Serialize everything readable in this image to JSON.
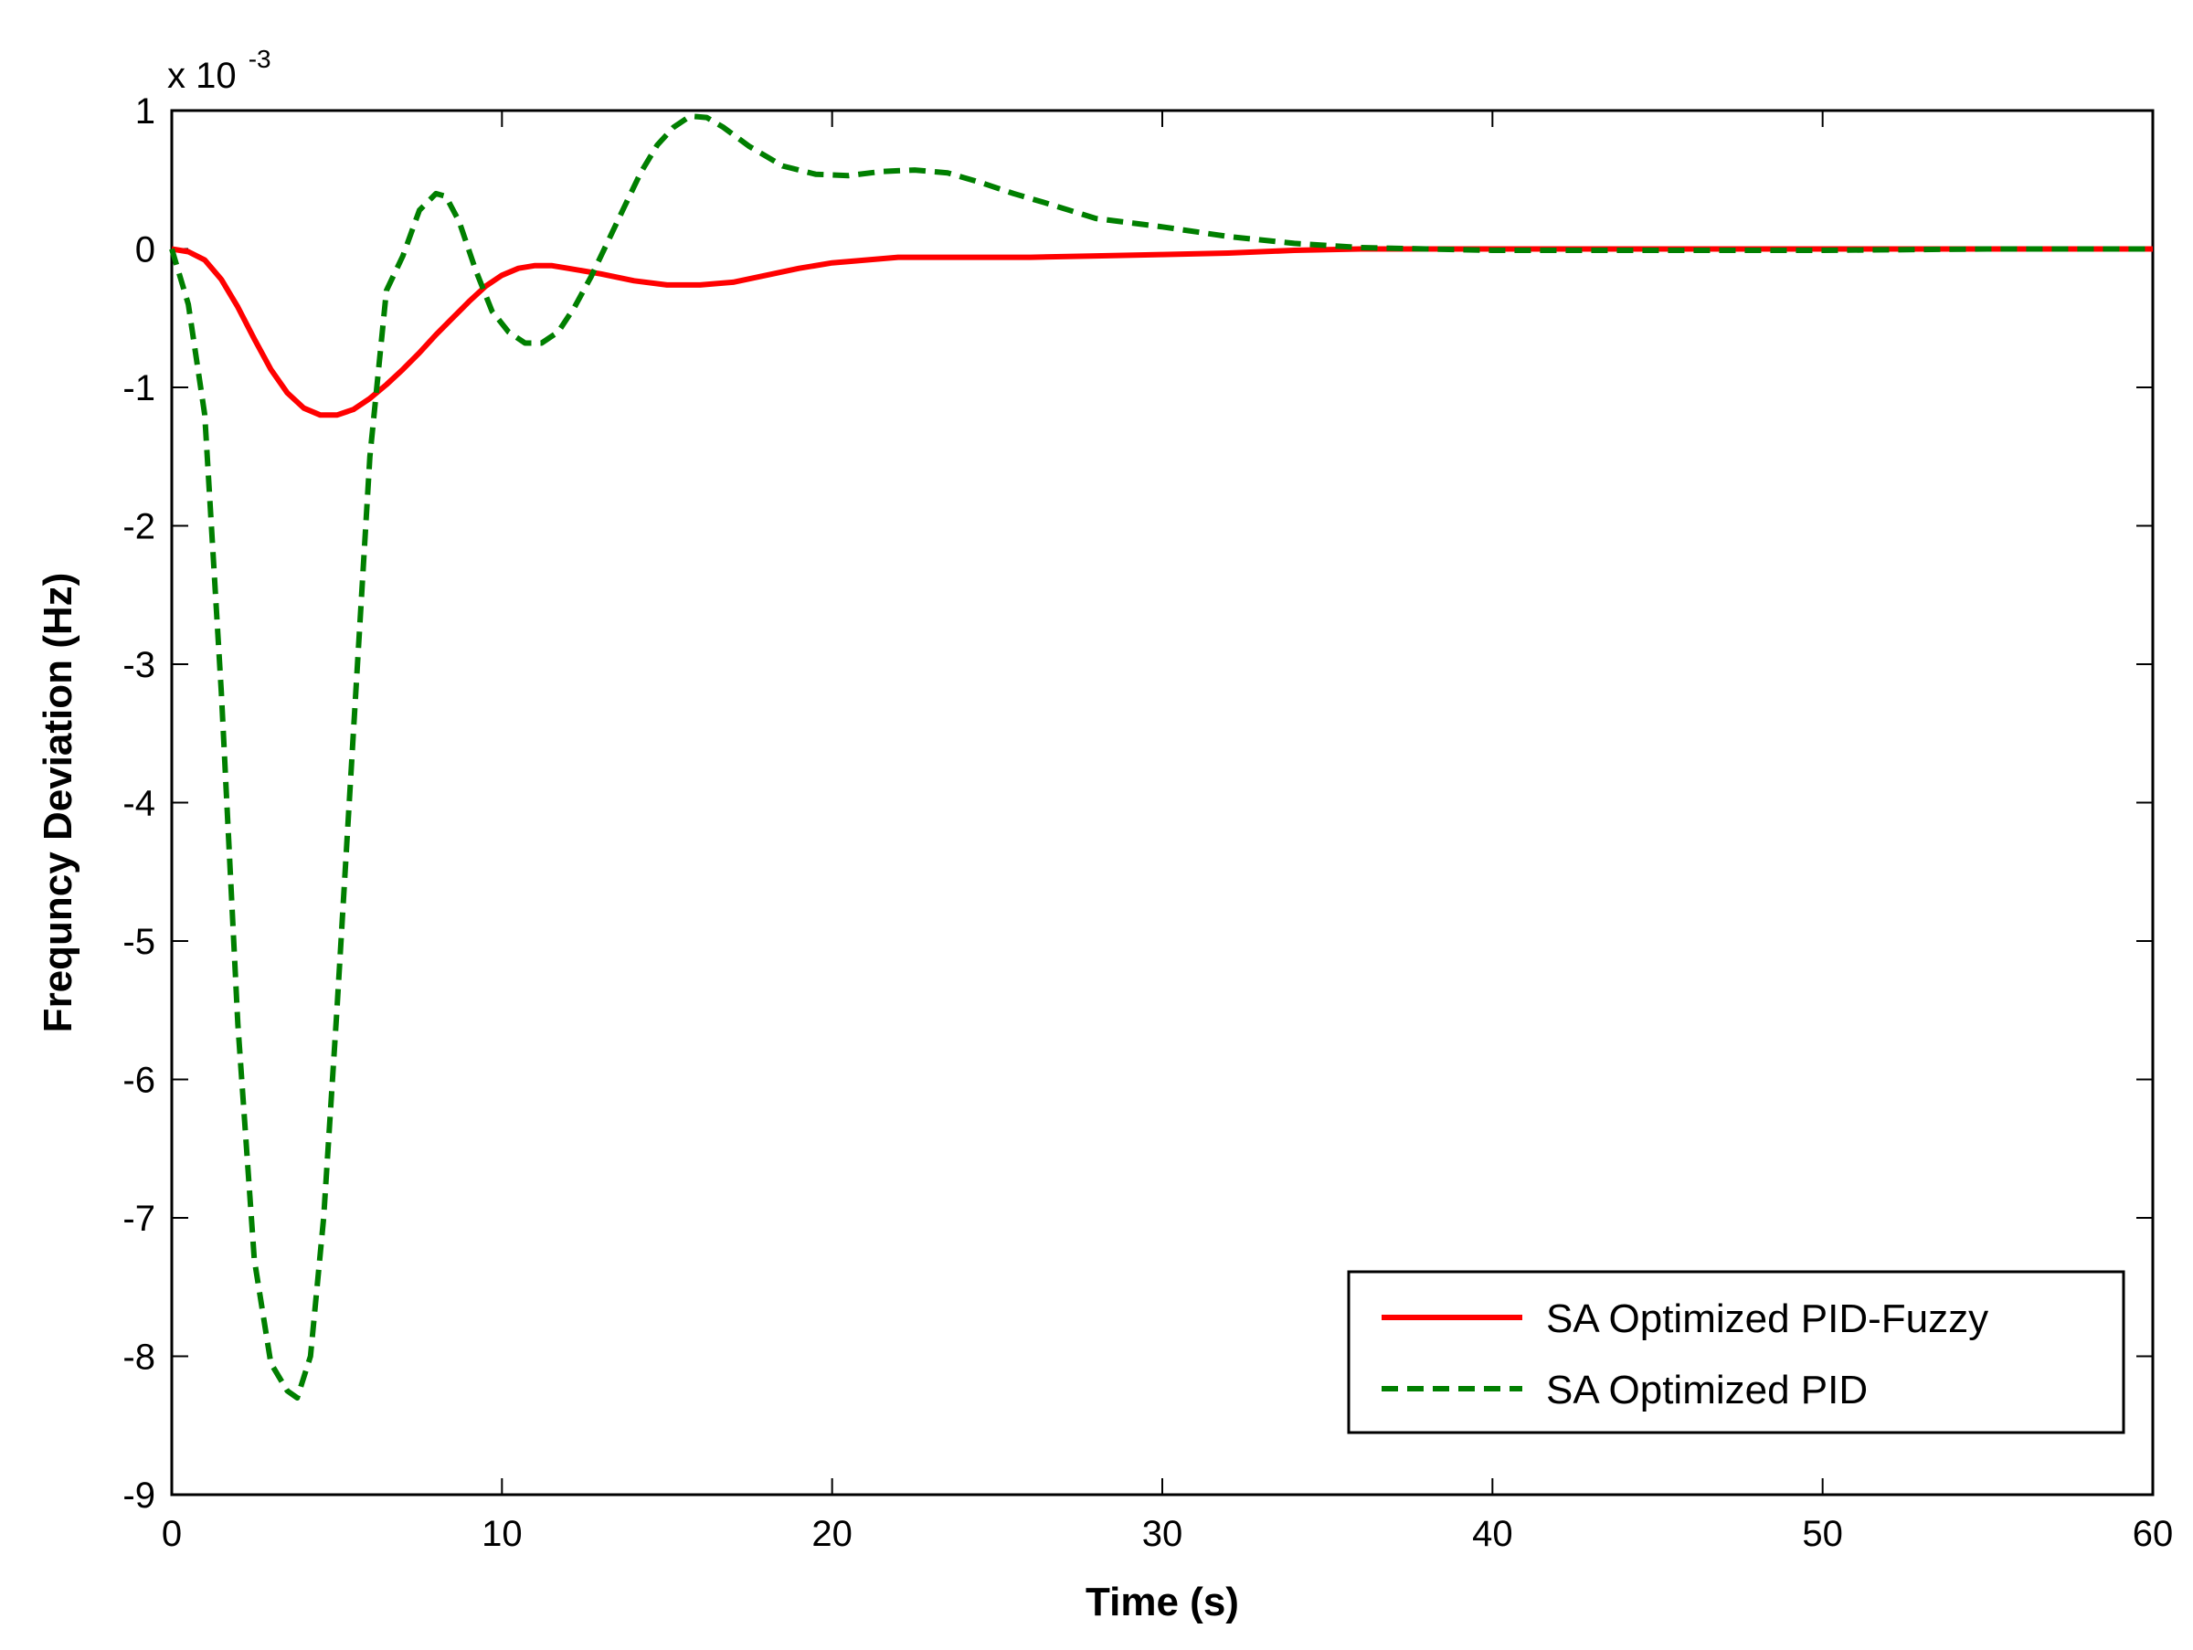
{
  "chart_data": {
    "type": "line",
    "xlabel": "Time (s)",
    "ylabel": "Frequncy Deviation (Hz)",
    "y_multiplier_label": "x 10",
    "y_multiplier_exponent": "-3",
    "xlim": [
      0,
      60
    ],
    "ylim": [
      -9,
      1
    ],
    "xticks": [
      0,
      10,
      20,
      30,
      40,
      50,
      60
    ],
    "yticks": [
      -9,
      -8,
      -7,
      -6,
      -5,
      -4,
      -3,
      -2,
      -1,
      0,
      1
    ],
    "grid": false,
    "legend_position": "bottom-right",
    "series": [
      {
        "name": "SA Optimized PID-Fuzzy",
        "color": "#ff0000",
        "line_style": "solid",
        "x": [
          0,
          0.5,
          1,
          1.5,
          2,
          2.5,
          3,
          3.5,
          4,
          4.5,
          5,
          5.5,
          6,
          6.5,
          7,
          7.5,
          8,
          8.5,
          9,
          9.5,
          10,
          10.5,
          11,
          11.5,
          12,
          13,
          14,
          15,
          16,
          17,
          18,
          19,
          20,
          22,
          24,
          26,
          28,
          30,
          32,
          34,
          36,
          38,
          40,
          45,
          50,
          55,
          60
        ],
        "values": [
          0,
          -0.02,
          -0.08,
          -0.22,
          -0.42,
          -0.65,
          -0.87,
          -1.04,
          -1.15,
          -1.2,
          -1.2,
          -1.16,
          -1.08,
          -0.98,
          -0.87,
          -0.75,
          -0.62,
          -0.5,
          -0.38,
          -0.27,
          -0.19,
          -0.14,
          -0.12,
          -0.12,
          -0.14,
          -0.18,
          -0.23,
          -0.26,
          -0.26,
          -0.24,
          -0.19,
          -0.14,
          -0.1,
          -0.06,
          -0.06,
          -0.06,
          -0.05,
          -0.04,
          -0.03,
          -0.01,
          0,
          0,
          0,
          0,
          0,
          0,
          0
        ]
      },
      {
        "name": "SA Optimized PID",
        "color": "#007f00",
        "line_style": "dashed",
        "x": [
          0,
          0.5,
          1,
          1.5,
          2,
          2.5,
          3,
          3.5,
          3.8,
          4.2,
          4.6,
          5,
          5.5,
          6,
          6.5,
          7,
          7.5,
          8,
          8.3,
          8.7,
          9.2,
          9.7,
          10.2,
          10.7,
          11.2,
          11.7,
          12.2,
          12.7,
          13.2,
          13.7,
          14.2,
          14.7,
          15.2,
          15.7,
          16.2,
          16.7,
          17.5,
          18.5,
          19.5,
          20.5,
          21.5,
          22.5,
          23.5,
          24.5,
          25.5,
          26.5,
          28,
          30,
          32,
          34,
          36,
          38,
          40,
          45,
          50,
          55,
          60
        ],
        "values": [
          0,
          -0.4,
          -1.2,
          -3.2,
          -5.6,
          -7.3,
          -8.05,
          -8.25,
          -8.3,
          -8.0,
          -7.0,
          -5.5,
          -3.5,
          -1.5,
          -0.3,
          -0.05,
          0.28,
          0.4,
          0.38,
          0.2,
          -0.15,
          -0.45,
          -0.6,
          -0.68,
          -0.68,
          -0.6,
          -0.42,
          -0.2,
          0.05,
          0.3,
          0.55,
          0.75,
          0.88,
          0.96,
          0.95,
          0.88,
          0.74,
          0.6,
          0.54,
          0.53,
          0.56,
          0.57,
          0.55,
          0.48,
          0.4,
          0.33,
          0.22,
          0.16,
          0.09,
          0.04,
          0.01,
          0,
          -0.01,
          -0.01,
          -0.01,
          0,
          0
        ]
      }
    ]
  }
}
